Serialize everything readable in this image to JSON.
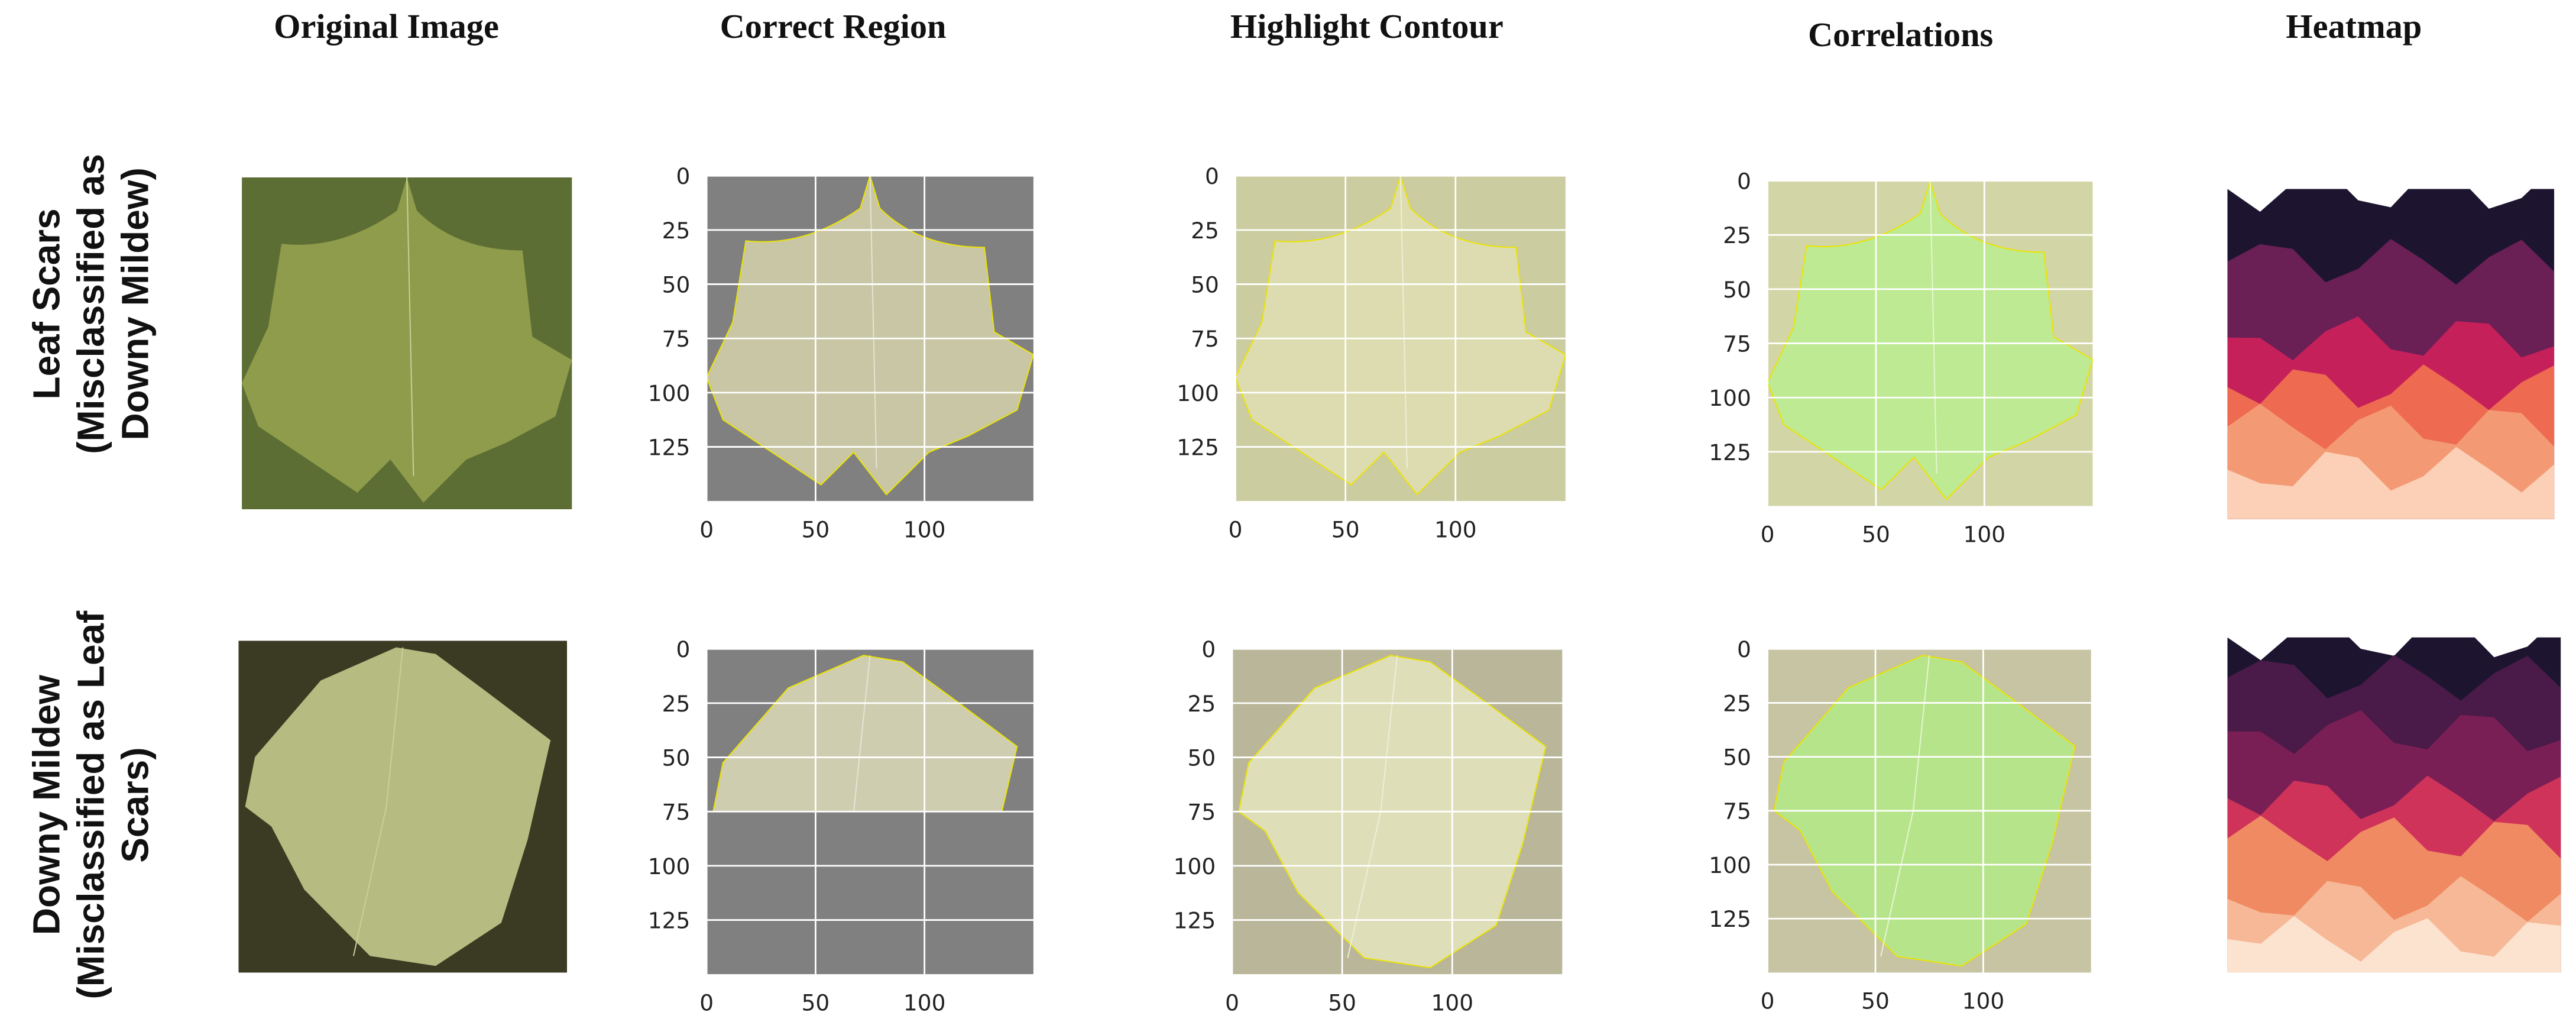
{
  "columns": [
    "Original Image",
    "Correct Region",
    "Highlight Contour",
    "Correlations",
    "Heatmap"
  ],
  "rows": [
    {
      "label": [
        "Leaf Scars",
        "(Misclassified as",
        "Downy Mildew)"
      ]
    },
    {
      "label": [
        "Downy Mildew",
        "(Misclassified as Leaf",
        "Scars)"
      ]
    }
  ],
  "axes": {
    "xlim": [
      0,
      150
    ],
    "ylim": [
      0,
      150
    ],
    "xticks": [
      0,
      50,
      100
    ],
    "yticks": [
      0,
      25,
      50,
      75,
      100,
      125
    ]
  }
}
